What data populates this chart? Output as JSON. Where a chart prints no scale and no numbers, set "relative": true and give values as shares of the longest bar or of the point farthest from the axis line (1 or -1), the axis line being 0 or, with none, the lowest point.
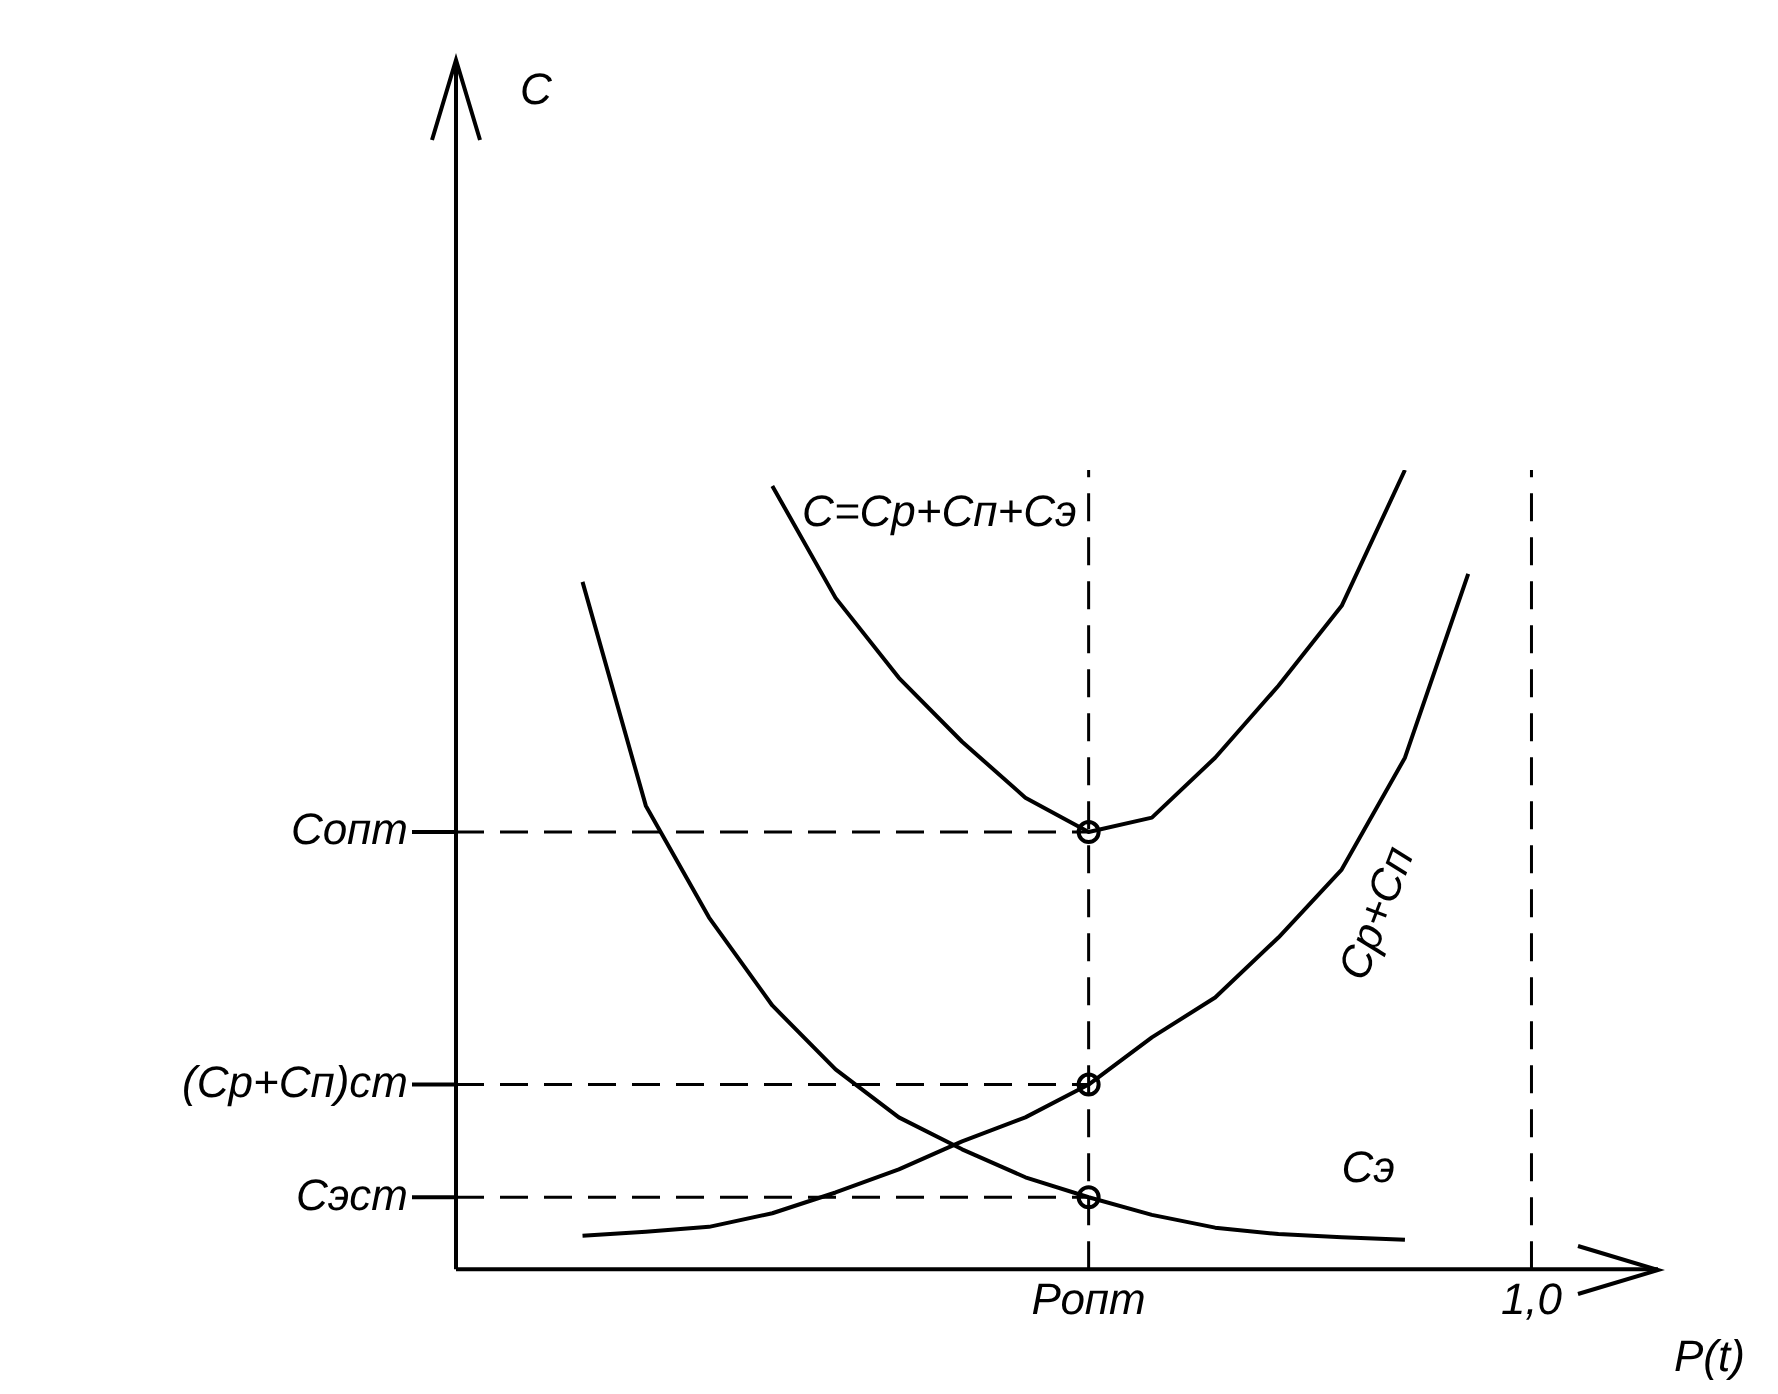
{
  "chart_data": {
    "type": "line",
    "relative": true,
    "xlabel": "P(t)",
    "annotations": [
      "С"
    ],
    "grid": false,
    "legend": false,
    "marker": "none",
    "line_style": "solid",
    "categories": [
      null,
      null,
      null,
      null,
      null,
      null,
      null,
      null,
      null,
      null,
      "Ропт",
      null,
      null,
      null,
      null,
      null,
      null,
      "1,0",
      null,
      null
    ],
    "ref_lines": [
      {
        "axis": "y",
        "value": 0.547,
        "label": "Сопт",
        "line_style": "dashed"
      },
      {
        "axis": "y",
        "value": 0.231,
        "label": "(Ср+Сп)ст",
        "line_style": "dashed"
      },
      {
        "axis": "y",
        "value": 0.09,
        "label": "Сэст",
        "line_style": "dashed"
      },
      {
        "axis": "x",
        "value": "Ропт",
        "line_style": "dashed"
      },
      {
        "axis": "x",
        "value": "1,0",
        "line_style": "dashed"
      }
    ],
    "series": [
      {
        "name": "С=Ср+Сп+Сэ",
        "color": "#000000",
        "values": [
          null,
          null,
          null,
          null,
          null,
          0.98,
          0.84,
          0.74,
          0.66,
          0.59,
          0.547,
          0.565,
          0.64,
          0.73,
          0.83,
          1,
          null,
          null,
          null,
          null
        ]
      },
      {
        "name": "Ср+Сп",
        "color": "#000000",
        "values": [
          null,
          null,
          0.042,
          0.047,
          0.053,
          0.07,
          0.096,
          0.125,
          0.16,
          0.19,
          0.231,
          0.29,
          0.34,
          0.415,
          0.5,
          0.64,
          0.87,
          null,
          null,
          null
        ]
      },
      {
        "name": "Сэ",
        "color": "#000000",
        "values": [
          null,
          null,
          0.86,
          0.58,
          0.44,
          0.33,
          0.25,
          0.19,
          0.15,
          0.115,
          0.09,
          0.068,
          0.052,
          0.044,
          0.04,
          0.037,
          null,
          null,
          null,
          null
        ]
      },
      {
        "type": "scatter",
        "marker": "circle",
        "color": "#000000",
        "values": [
          null,
          null,
          null,
          null,
          null,
          null,
          null,
          null,
          null,
          null,
          0.547,
          null,
          null,
          null,
          null,
          null,
          null,
          null,
          null,
          null
        ]
      },
      {
        "type": "scatter",
        "marker": "circle",
        "color": "#000000",
        "values": [
          null,
          null,
          null,
          null,
          null,
          null,
          null,
          null,
          null,
          null,
          0.231,
          null,
          null,
          null,
          null,
          null,
          null,
          null,
          null,
          null
        ]
      },
      {
        "type": "scatter",
        "marker": "circle",
        "color": "#000000",
        "values": [
          null,
          null,
          null,
          null,
          null,
          null,
          null,
          null,
          null,
          null,
          0.09,
          null,
          null,
          null,
          null,
          null,
          null,
          null,
          null,
          null
        ]
      }
    ]
  }
}
